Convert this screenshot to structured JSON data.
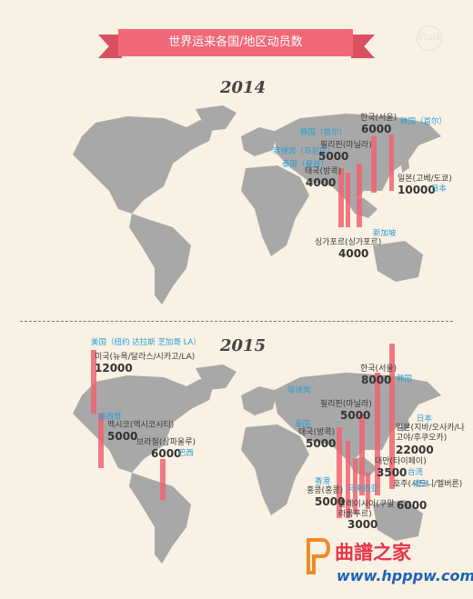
{
  "header": {
    "title": "世界运来各国/地区动员数"
  },
  "logo": {
    "text": "Ttalk"
  },
  "sections": {
    "y2014": {
      "year": "2014",
      "entries": [
        {
          "ko": "한국(서울)",
          "num": "6000",
          "cn": "韩国（首尔）"
        },
        {
          "ko": "필리핀(마닐라)",
          "num": "5000",
          "cn": "菲律宾（马尼拉）"
        },
        {
          "ko": "태국(방콕)",
          "num": "4000",
          "cn": "泰国（曼谷）"
        },
        {
          "ko": "일본(고베/도쿄)",
          "num": "10000",
          "cn": "日本"
        },
        {
          "ko": "싱가포르(싱가포르)",
          "num": "4000",
          "cn": "新加坡"
        }
      ]
    },
    "y2015": {
      "year": "2015",
      "entries": [
        {
          "ko": "미국(뉴욕/달라스/시카고/LA)",
          "num": "12000",
          "cn": "美国（纽约 达拉斯 芝加哥 LA）"
        },
        {
          "ko": "멕시코(멕시코시티)",
          "num": "5000",
          "cn": "墨西哥"
        },
        {
          "ko": "브라질(상파울루)",
          "num": "6000",
          "cn": "巴西"
        },
        {
          "ko": "한국(서울)",
          "num": "8000",
          "cn": "韩国"
        },
        {
          "ko": "필리핀(마닐라)",
          "num": "5000",
          "cn": "菲律宾"
        },
        {
          "ko": "태국(방콕)",
          "num": "5000",
          "cn": "泰国"
        },
        {
          "ko": "일본(지바/오사카/나고야/후쿠오카)",
          "num": "22000",
          "cn": "日本"
        },
        {
          "ko": "대만(타이페이)",
          "num": "3500",
          "cn": "台湾"
        },
        {
          "ko": "홍콩(홍콩)",
          "num": "5000",
          "cn": "香港"
        },
        {
          "ko": "말레이시아(쿠알라룸푸르)",
          "num": "3000",
          "cn": "马来西亚"
        },
        {
          "ko": "호주(시드니/멜버른)",
          "num": "6000",
          "cn": "澳洲"
        }
      ]
    }
  },
  "watermark": {
    "name": "曲譜之家",
    "url": "www.hpppw.com"
  },
  "colors": {
    "background": "#f8f1e4",
    "ribbon": "#f06877",
    "bar": "#ee6471",
    "map": "#a8a8a8",
    "cn_text": "#2a9fd4"
  }
}
